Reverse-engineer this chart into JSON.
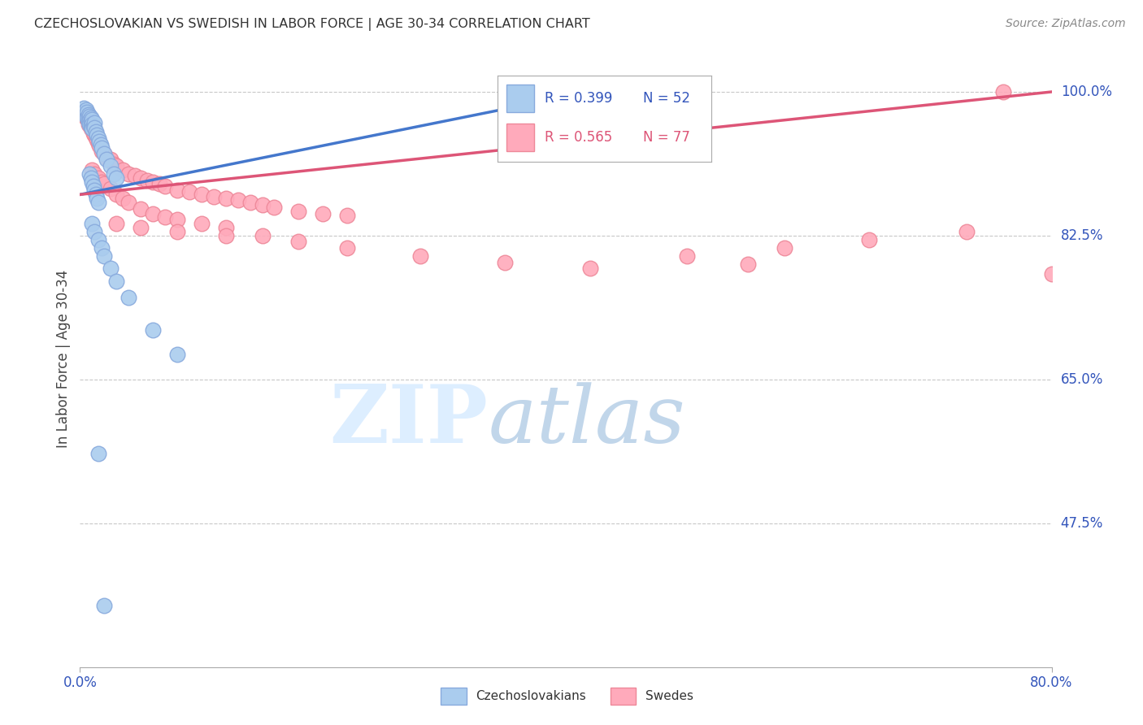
{
  "title": "CZECHOSLOVAKIAN VS SWEDISH IN LABOR FORCE | AGE 30-34 CORRELATION CHART",
  "source": "Source: ZipAtlas.com",
  "ylabel": "In Labor Force | Age 30-34",
  "xlim": [
    0.0,
    0.8
  ],
  "ylim": [
    0.3,
    1.05
  ],
  "ytick_positions": [
    1.0,
    0.825,
    0.65,
    0.475
  ],
  "yticklabels": [
    "100.0%",
    "82.5%",
    "65.0%",
    "47.5%"
  ],
  "grid_color": "#c8c8c8",
  "background_color": "#ffffff",
  "czech_color": "#aaccee",
  "czech_edge_color": "#88aadd",
  "swedish_color": "#ffaabb",
  "swedish_edge_color": "#ee8899",
  "legend_R_czech": "R = 0.399",
  "legend_N_czech": "N = 52",
  "legend_R_swedish": "R = 0.565",
  "legend_N_swedish": "N = 77",
  "trend_color_czech": "#4477cc",
  "trend_color_swedish": "#dd5577",
  "czech_x": [
    0.003,
    0.004,
    0.005,
    0.005,
    0.006,
    0.006,
    0.007,
    0.007,
    0.007,
    0.008,
    0.008,
    0.008,
    0.009,
    0.009,
    0.009,
    0.01,
    0.01,
    0.01,
    0.011,
    0.012,
    0.012,
    0.013,
    0.014,
    0.015,
    0.016,
    0.017,
    0.018,
    0.02,
    0.022,
    0.025,
    0.028,
    0.03,
    0.008,
    0.009,
    0.01,
    0.011,
    0.012,
    0.013,
    0.014,
    0.015,
    0.01,
    0.012,
    0.015,
    0.018,
    0.02,
    0.025,
    0.03,
    0.04,
    0.06,
    0.08,
    0.015,
    0.02
  ],
  "czech_y": [
    0.98,
    0.975,
    0.978,
    0.972,
    0.975,
    0.968,
    0.972,
    0.967,
    0.963,
    0.97,
    0.965,
    0.96,
    0.968,
    0.962,
    0.958,
    0.966,
    0.96,
    0.955,
    0.958,
    0.962,
    0.956,
    0.952,
    0.948,
    0.944,
    0.94,
    0.936,
    0.932,
    0.925,
    0.918,
    0.91,
    0.9,
    0.895,
    0.9,
    0.895,
    0.89,
    0.885,
    0.88,
    0.875,
    0.87,
    0.865,
    0.84,
    0.83,
    0.82,
    0.81,
    0.8,
    0.785,
    0.77,
    0.75,
    0.71,
    0.68,
    0.56,
    0.375
  ],
  "swedish_x": [
    0.003,
    0.004,
    0.005,
    0.005,
    0.006,
    0.007,
    0.007,
    0.008,
    0.008,
    0.009,
    0.009,
    0.01,
    0.01,
    0.011,
    0.012,
    0.013,
    0.014,
    0.015,
    0.016,
    0.018,
    0.02,
    0.022,
    0.025,
    0.028,
    0.03,
    0.035,
    0.04,
    0.045,
    0.05,
    0.055,
    0.06,
    0.065,
    0.07,
    0.08,
    0.09,
    0.1,
    0.11,
    0.12,
    0.13,
    0.14,
    0.15,
    0.16,
    0.18,
    0.2,
    0.22,
    0.01,
    0.012,
    0.015,
    0.018,
    0.02,
    0.025,
    0.03,
    0.035,
    0.04,
    0.05,
    0.06,
    0.07,
    0.08,
    0.1,
    0.12,
    0.15,
    0.18,
    0.22,
    0.28,
    0.35,
    0.42,
    0.5,
    0.58,
    0.65,
    0.73,
    0.03,
    0.05,
    0.08,
    0.12,
    0.55,
    0.76,
    0.8
  ],
  "swedish_y": [
    0.975,
    0.97,
    0.972,
    0.968,
    0.97,
    0.965,
    0.96,
    0.968,
    0.963,
    0.958,
    0.955,
    0.962,
    0.958,
    0.95,
    0.948,
    0.945,
    0.942,
    0.938,
    0.935,
    0.928,
    0.925,
    0.92,
    0.918,
    0.912,
    0.91,
    0.905,
    0.9,
    0.898,
    0.895,
    0.892,
    0.89,
    0.888,
    0.885,
    0.88,
    0.878,
    0.875,
    0.872,
    0.87,
    0.868,
    0.865,
    0.862,
    0.86,
    0.855,
    0.852,
    0.85,
    0.905,
    0.9,
    0.895,
    0.89,
    0.888,
    0.882,
    0.875,
    0.87,
    0.865,
    0.858,
    0.852,
    0.848,
    0.845,
    0.84,
    0.835,
    0.825,
    0.818,
    0.81,
    0.8,
    0.792,
    0.785,
    0.8,
    0.81,
    0.82,
    0.83,
    0.84,
    0.835,
    0.83,
    0.825,
    0.79,
    1.0,
    0.778
  ]
}
